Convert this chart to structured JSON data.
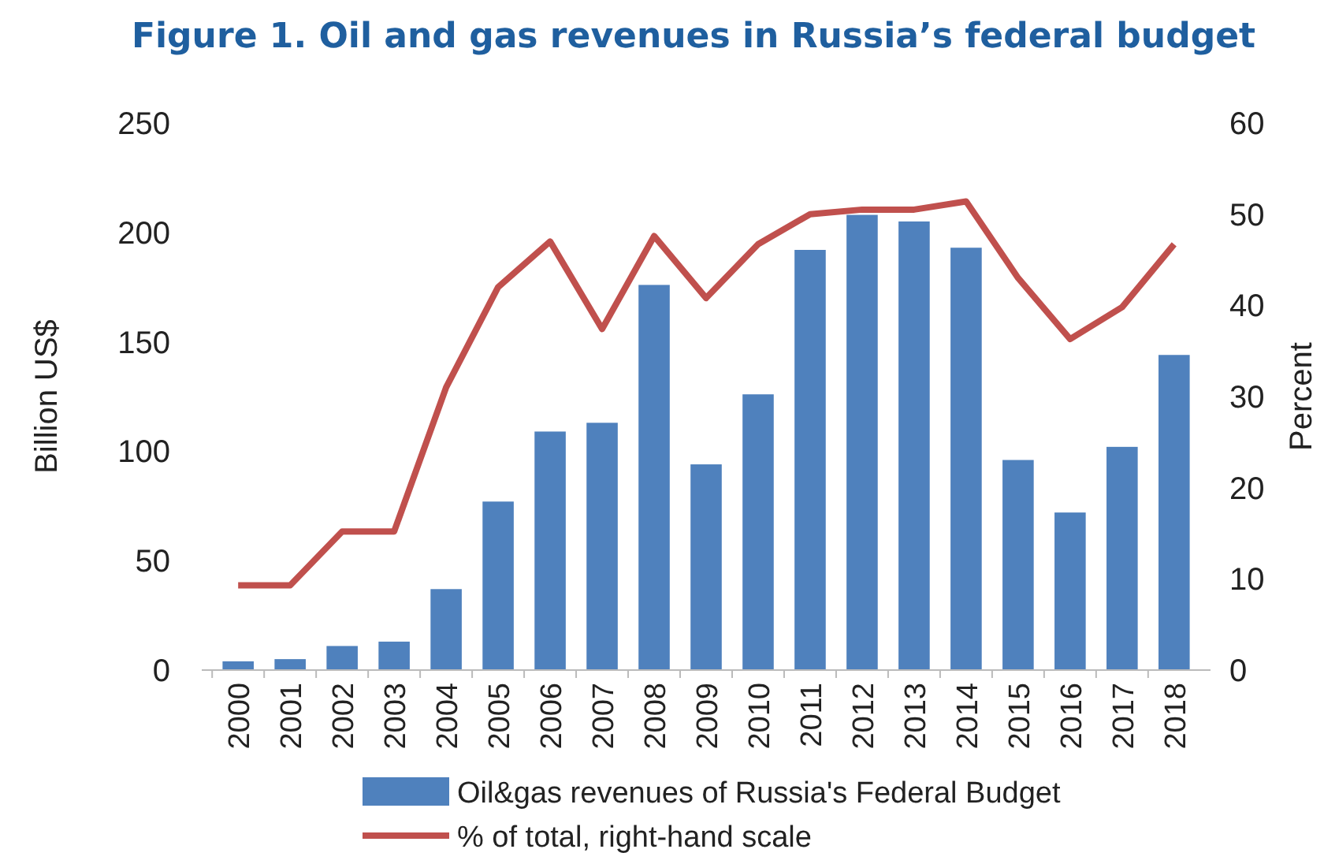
{
  "chart_data": {
    "type": "bar",
    "title": "Figure 1. Oil and gas revenues in Russia’s federal budget",
    "ylabel": "Billion US$",
    "y2label": "Percent",
    "categories": [
      "2000",
      "2001",
      "2002",
      "2003",
      "2004",
      "2005",
      "2006",
      "2007",
      "2008",
      "2009",
      "2010",
      "2011",
      "2012",
      "2013",
      "2014",
      "2015",
      "2016",
      "2017",
      "2018"
    ],
    "series": [
      {
        "name": "Oil&gas revenues of Russia's Federal Budget",
        "color": "#4f81bd",
        "values": [
          4,
          5,
          11,
          13,
          37,
          77,
          109,
          113,
          176,
          94,
          126,
          192,
          208,
          205,
          193,
          96,
          72,
          102,
          144
        ]
      },
      {
        "name": "% of total, right-hand scale",
        "type": "line",
        "axis": "y2",
        "color": "#c0504d",
        "values": [
          9.3,
          9.3,
          15.2,
          15.2,
          31,
          42,
          47,
          37.4,
          47.6,
          40.8,
          46.7,
          50,
          50.5,
          50.5,
          51.4,
          43,
          36.3,
          39.8,
          46.7
        ]
      }
    ],
    "ylim": [
      0,
      250
    ],
    "yticks": [
      0,
      50,
      100,
      150,
      200,
      250
    ],
    "y2lim": [
      0,
      60
    ],
    "y2ticks": [
      0,
      10,
      20,
      30,
      40,
      50,
      60
    ],
    "legend": "bottom",
    "grid": false
  }
}
